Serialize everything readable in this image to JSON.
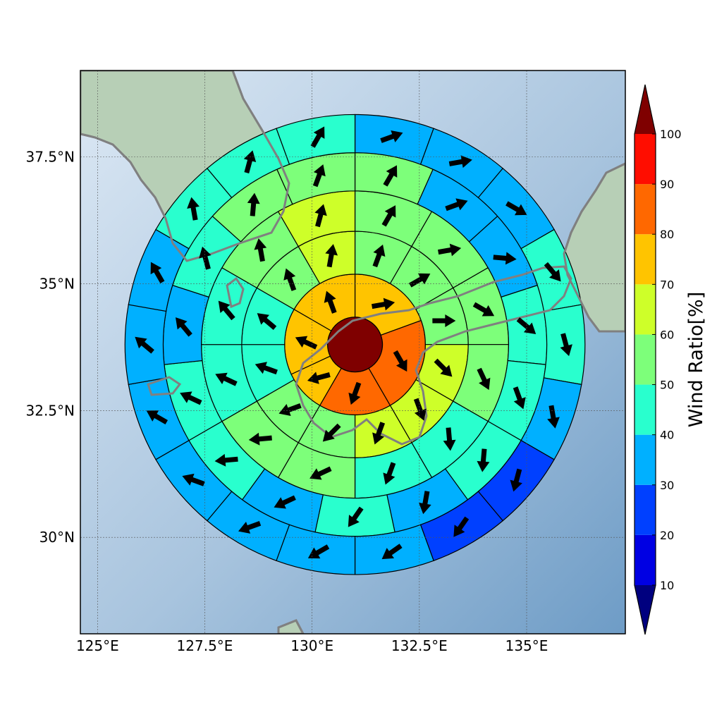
{
  "map": {
    "extent": {
      "lon_min": 124.6,
      "lon_max": 137.3,
      "lat_min": 28.1,
      "lat_max": 39.2
    },
    "center": {
      "lon": 131.0,
      "lat": 33.8
    },
    "ring_radii_deg": [
      0.64,
      1.64,
      2.64,
      3.58,
      4.47,
      5.36
    ],
    "lon_ticks": [
      {
        "value": 125,
        "label": "125°E"
      },
      {
        "value": 127.5,
        "label": "127.5°E"
      },
      {
        "value": 130,
        "label": "130°E"
      },
      {
        "value": 132.5,
        "label": "132.5°E"
      },
      {
        "value": 135,
        "label": "135°E"
      }
    ],
    "lat_ticks": [
      {
        "value": 37.5,
        "label": "37.5°N"
      },
      {
        "value": 35,
        "label": "35°N"
      },
      {
        "value": 32.5,
        "label": "32.5°N"
      },
      {
        "value": 30,
        "label": "30°N"
      }
    ],
    "colors": {
      "ocean_light": "#dce8f4",
      "ocean_mid": "#a8c4de",
      "ocean_dark": "#6e9cc6",
      "land": "#b7cfb6",
      "coast": "#808080",
      "grid": "#555555"
    }
  },
  "chart_data": {
    "type": "polar-sector-map",
    "title": "",
    "value_label": "Wind Ratio[%]",
    "levels": [
      0,
      10,
      20,
      30,
      40,
      50,
      60,
      70,
      80,
      90,
      100,
      110
    ],
    "colors": [
      "#00007f",
      "#0000e3",
      "#0040ff",
      "#00b0ff",
      "#29ffce",
      "#7dff7a",
      "#ceff29",
      "#ffc400",
      "#ff6800",
      "#ff0d00",
      "#7f0000"
    ],
    "rings": [
      {
        "inner": 0,
        "outer": 0.64,
        "sectors": [
          {
            "start": 0,
            "end": 360,
            "value": 105,
            "dir": null
          }
        ]
      },
      {
        "inner": 0.64,
        "outer": 1.64,
        "sectors": [
          {
            "start": 0,
            "end": 70,
            "value": 75,
            "dir": 80
          },
          {
            "start": 70,
            "end": 150,
            "value": 85,
            "dir": 150
          },
          {
            "start": 150,
            "end": 210,
            "value": 85,
            "dir": 200
          },
          {
            "start": 210,
            "end": 245,
            "value": 75,
            "dir": 255
          },
          {
            "start": 245,
            "end": 300,
            "value": 75,
            "dir": 295
          },
          {
            "start": 300,
            "end": 360,
            "value": 75,
            "dir": 340
          }
        ]
      },
      {
        "inner": 1.64,
        "outer": 2.64,
        "sectors": [
          {
            "start": 0,
            "end": 30,
            "value": 55,
            "dir": 20
          },
          {
            "start": 30,
            "end": 60,
            "value": 55,
            "dir": 60
          },
          {
            "start": 60,
            "end": 90,
            "value": 55,
            "dir": 90
          },
          {
            "start": 90,
            "end": 120,
            "value": 65,
            "dir": 135
          },
          {
            "start": 120,
            "end": 150,
            "value": 65,
            "dir": 160
          },
          {
            "start": 150,
            "end": 180,
            "value": 65,
            "dir": 200
          },
          {
            "start": 180,
            "end": 210,
            "value": 55,
            "dir": 225
          },
          {
            "start": 210,
            "end": 240,
            "value": 55,
            "dir": 250
          },
          {
            "start": 240,
            "end": 270,
            "value": 45,
            "dir": 290
          },
          {
            "start": 270,
            "end": 300,
            "value": 45,
            "dir": 310
          },
          {
            "start": 300,
            "end": 330,
            "value": 55,
            "dir": 340
          },
          {
            "start": 330,
            "end": 360,
            "value": 65,
            "dir": 10
          }
        ]
      },
      {
        "inner": 2.64,
        "outer": 3.58,
        "sectors": [
          {
            "start": 0,
            "end": 30,
            "value": 55,
            "dir": 30
          },
          {
            "start": 30,
            "end": 60,
            "value": 55,
            "dir": 80
          },
          {
            "start": 60,
            "end": 90,
            "value": 55,
            "dir": 120
          },
          {
            "start": 90,
            "end": 120,
            "value": 55,
            "dir": 155
          },
          {
            "start": 120,
            "end": 150,
            "value": 45,
            "dir": 175
          },
          {
            "start": 150,
            "end": 180,
            "value": 45,
            "dir": 200
          },
          {
            "start": 180,
            "end": 210,
            "value": 55,
            "dir": 245
          },
          {
            "start": 210,
            "end": 240,
            "value": 55,
            "dir": 265
          },
          {
            "start": 240,
            "end": 270,
            "value": 45,
            "dir": 295
          },
          {
            "start": 270,
            "end": 300,
            "value": 45,
            "dir": 320
          },
          {
            "start": 300,
            "end": 330,
            "value": 55,
            "dir": 350
          },
          {
            "start": 330,
            "end": 360,
            "value": 65,
            "dir": 15
          }
        ]
      },
      {
        "inner": 3.58,
        "outer": 4.47,
        "sectors": [
          {
            "start": 0,
            "end": 24,
            "value": 55,
            "dir": 30
          },
          {
            "start": 24,
            "end": 48,
            "value": 35,
            "dir": 70
          },
          {
            "start": 48,
            "end": 72,
            "value": 35,
            "dir": 95
          },
          {
            "start": 72,
            "end": 96,
            "value": 45,
            "dir": 130
          },
          {
            "start": 96,
            "end": 120,
            "value": 45,
            "dir": 160
          },
          {
            "start": 120,
            "end": 144,
            "value": 45,
            "dir": 185
          },
          {
            "start": 144,
            "end": 168,
            "value": 35,
            "dir": 190
          },
          {
            "start": 168,
            "end": 192,
            "value": 45,
            "dir": 215
          },
          {
            "start": 192,
            "end": 216,
            "value": 35,
            "dir": 245
          },
          {
            "start": 216,
            "end": 240,
            "value": 45,
            "dir": 265
          },
          {
            "start": 240,
            "end": 264,
            "value": 45,
            "dir": 295
          },
          {
            "start": 264,
            "end": 288,
            "value": 35,
            "dir": 320
          },
          {
            "start": 288,
            "end": 312,
            "value": 45,
            "dir": 345
          },
          {
            "start": 312,
            "end": 336,
            "value": 55,
            "dir": 5
          },
          {
            "start": 336,
            "end": 360,
            "value": 55,
            "dir": 20
          }
        ]
      },
      {
        "inner": 4.47,
        "outer": 5.36,
        "sectors": [
          {
            "start": 0,
            "end": 20,
            "value": 35,
            "dir": 70
          },
          {
            "start": 20,
            "end": 40,
            "value": 35,
            "dir": 80
          },
          {
            "start": 40,
            "end": 60,
            "value": 35,
            "dir": 120
          },
          {
            "start": 60,
            "end": 80,
            "value": 45,
            "dir": 140
          },
          {
            "start": 80,
            "end": 100,
            "value": 45,
            "dir": 165
          },
          {
            "start": 100,
            "end": 120,
            "value": 35,
            "dir": 170
          },
          {
            "start": 120,
            "end": 140,
            "value": 25,
            "dir": 195
          },
          {
            "start": 140,
            "end": 160,
            "value": 25,
            "dir": 215
          },
          {
            "start": 160,
            "end": 180,
            "value": 35,
            "dir": 235
          },
          {
            "start": 180,
            "end": 200,
            "value": 35,
            "dir": 240
          },
          {
            "start": 200,
            "end": 220,
            "value": 35,
            "dir": 250
          },
          {
            "start": 220,
            "end": 240,
            "value": 35,
            "dir": 290
          },
          {
            "start": 240,
            "end": 260,
            "value": 35,
            "dir": 300
          },
          {
            "start": 260,
            "end": 280,
            "value": 35,
            "dir": 310
          },
          {
            "start": 280,
            "end": 300,
            "value": 35,
            "dir": 330
          },
          {
            "start": 300,
            "end": 320,
            "value": 45,
            "dir": 350
          },
          {
            "start": 320,
            "end": 340,
            "value": 45,
            "dir": 15
          },
          {
            "start": 340,
            "end": 360,
            "value": 45,
            "dir": 30
          }
        ]
      }
    ],
    "colorbar": {
      "tick_values": [
        10,
        20,
        30,
        40,
        50,
        60,
        70,
        80,
        90,
        100
      ],
      "tick_labels": [
        "10",
        "20",
        "30",
        "40",
        "50",
        "60",
        "70",
        "80",
        "90",
        "100"
      ],
      "extend": "both"
    }
  }
}
